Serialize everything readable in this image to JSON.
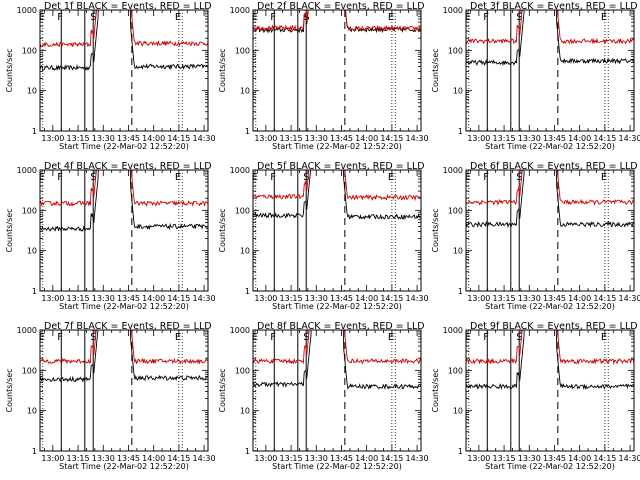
{
  "chart_data": [
    {
      "type": "line",
      "title": "Det 1f BLACK = Events, RED = LLD",
      "xlabel": "Start Time (22-Mar-02 12:52:20)",
      "ylabel": "Counts/sec",
      "yscale": "log",
      "ylim": [
        1,
        1000
      ],
      "x_ticks": [
        "13:00",
        "13:15",
        "13:30",
        "13:45",
        "14:00",
        "14:15",
        "14:30"
      ],
      "y_ticks": [
        "1",
        "10",
        "100",
        "1000"
      ],
      "markers": [
        {
          "label": "E",
          "time": "12:54",
          "style": "dotted"
        },
        {
          "label": "F",
          "time": "13:05",
          "style": "solid"
        },
        {
          "label": "S",
          "time": "13:24",
          "style": "solid"
        },
        {
          "label": "E",
          "time": "14:15",
          "style": "dotted"
        }
      ],
      "solid_lines": [
        "13:05",
        "13:19",
        "13:24"
      ],
      "dashed_lines": [
        "13:47"
      ],
      "dotted_lines": [
        "12:54",
        "14:15",
        "14:17"
      ],
      "series": [
        {
          "color": "#000000",
          "level_before": 37,
          "level_after": 40,
          "peak_time": "13:38"
        },
        {
          "color": "#cc0000",
          "level_before": 140,
          "level_after": 150,
          "peak_time": "13:38"
        }
      ]
    },
    {
      "type": "line",
      "title": "Det 2f BLACK = Events, RED = LLD",
      "xlabel": "Start Time (22-Mar-02 12:52:20)",
      "ylabel": "Counts/sec",
      "yscale": "log",
      "ylim": [
        1,
        1000
      ],
      "x_ticks": [
        "13:00",
        "13:15",
        "13:30",
        "13:45",
        "14:00",
        "14:15",
        "14:30"
      ],
      "y_ticks": [
        "1",
        "10",
        "100",
        "1000"
      ],
      "markers": [
        {
          "label": "E",
          "time": "12:54",
          "style": "dotted"
        },
        {
          "label": "F",
          "time": "13:05",
          "style": "solid"
        },
        {
          "label": "S",
          "time": "13:24",
          "style": "solid"
        },
        {
          "label": "E",
          "time": "14:15",
          "style": "dotted"
        }
      ],
      "solid_lines": [
        "13:05",
        "13:19",
        "13:24"
      ],
      "dashed_lines": [
        "13:47"
      ],
      "dotted_lines": [
        "12:54",
        "14:15",
        "14:17"
      ],
      "series": [
        {
          "color": "#000000",
          "level_before": 320,
          "level_after": 330,
          "peak_time": "13:38"
        },
        {
          "color": "#cc0000",
          "level_before": 360,
          "level_after": 350,
          "peak_time": "13:38"
        }
      ]
    },
    {
      "type": "line",
      "title": "Det 3f BLACK = Events, RED = LLD",
      "xlabel": "Start Time (22-Mar-02 12:52:20)",
      "ylabel": "Counts/sec",
      "yscale": "log",
      "ylim": [
        1,
        1000
      ],
      "x_ticks": [
        "13:00",
        "13:15",
        "13:30",
        "13:45",
        "14:00",
        "14:15",
        "14:30"
      ],
      "y_ticks": [
        "1",
        "10",
        "100",
        "1000"
      ],
      "markers": [
        {
          "label": "E",
          "time": "12:54",
          "style": "dotted"
        },
        {
          "label": "F",
          "time": "13:05",
          "style": "solid"
        },
        {
          "label": "S",
          "time": "13:24",
          "style": "solid"
        },
        {
          "label": "E",
          "time": "14:15",
          "style": "dotted"
        }
      ],
      "solid_lines": [
        "13:05",
        "13:19",
        "13:24"
      ],
      "dashed_lines": [
        "13:47"
      ],
      "dotted_lines": [
        "12:54",
        "14:15",
        "14:17"
      ],
      "series": [
        {
          "color": "#000000",
          "level_before": 50,
          "level_after": 55,
          "peak_time": "13:38"
        },
        {
          "color": "#cc0000",
          "level_before": 170,
          "level_after": 170,
          "peak_time": "13:38"
        }
      ]
    },
    {
      "type": "line",
      "title": "Det 4f BLACK = Events, RED = LLD",
      "xlabel": "Start Time (22-Mar-02 12:52:20)",
      "ylabel": "Counts/sec",
      "yscale": "log",
      "ylim": [
        1,
        1000
      ],
      "x_ticks": [
        "13:00",
        "13:15",
        "13:30",
        "13:45",
        "14:00",
        "14:15",
        "14:30"
      ],
      "y_ticks": [
        "1",
        "10",
        "100",
        "1000"
      ],
      "markers": [
        {
          "label": "E",
          "time": "12:54",
          "style": "dotted"
        },
        {
          "label": "F",
          "time": "13:05",
          "style": "solid"
        },
        {
          "label": "S",
          "time": "13:24",
          "style": "solid"
        },
        {
          "label": "E",
          "time": "14:15",
          "style": "dotted"
        }
      ],
      "solid_lines": [
        "13:05",
        "13:19",
        "13:24"
      ],
      "dashed_lines": [
        "13:47"
      ],
      "dotted_lines": [
        "12:54",
        "14:15",
        "14:17"
      ],
      "series": [
        {
          "color": "#000000",
          "level_before": 35,
          "level_after": 40,
          "peak_time": "13:38"
        },
        {
          "color": "#cc0000",
          "level_before": 150,
          "level_after": 150,
          "peak_time": "13:38"
        }
      ]
    },
    {
      "type": "line",
      "title": "Det 5f BLACK = Events, RED = LLD",
      "xlabel": "Start Time (22-Mar-02 12:52:20)",
      "ylabel": "Counts/sec",
      "yscale": "log",
      "ylim": [
        1,
        1000
      ],
      "x_ticks": [
        "13:00",
        "13:15",
        "13:30",
        "13:45",
        "14:00",
        "14:15",
        "14:30"
      ],
      "y_ticks": [
        "1",
        "10",
        "100",
        "1000"
      ],
      "markers": [
        {
          "label": "E",
          "time": "12:54",
          "style": "dotted"
        },
        {
          "label": "F",
          "time": "13:05",
          "style": "solid"
        },
        {
          "label": "S",
          "time": "13:24",
          "style": "solid"
        },
        {
          "label": "E",
          "time": "14:15",
          "style": "dotted"
        }
      ],
      "solid_lines": [
        "13:05",
        "13:19",
        "13:24"
      ],
      "dashed_lines": [
        "13:47"
      ],
      "dotted_lines": [
        "12:54",
        "14:15",
        "14:17"
      ],
      "series": [
        {
          "color": "#000000",
          "level_before": 75,
          "level_after": 70,
          "peak_time": "13:38"
        },
        {
          "color": "#cc0000",
          "level_before": 220,
          "level_after": 210,
          "peak_time": "13:38"
        }
      ]
    },
    {
      "type": "line",
      "title": "Det 6f BLACK = Events, RED = LLD",
      "xlabel": "Start Time (22-Mar-02 12:52:20)",
      "ylabel": "Counts/sec",
      "yscale": "log",
      "ylim": [
        1,
        1000
      ],
      "x_ticks": [
        "13:00",
        "13:15",
        "13:30",
        "13:45",
        "14:00",
        "14:15",
        "14:30"
      ],
      "y_ticks": [
        "1",
        "10",
        "100",
        "1000"
      ],
      "markers": [
        {
          "label": "E",
          "time": "12:54",
          "style": "dotted"
        },
        {
          "label": "F",
          "time": "13:05",
          "style": "solid"
        },
        {
          "label": "S",
          "time": "13:24",
          "style": "solid"
        },
        {
          "label": "E",
          "time": "14:15",
          "style": "dotted"
        }
      ],
      "solid_lines": [
        "13:05",
        "13:19",
        "13:24"
      ],
      "dashed_lines": [
        "13:47"
      ],
      "dotted_lines": [
        "12:54",
        "14:15",
        "14:17"
      ],
      "series": [
        {
          "color": "#000000",
          "level_before": 45,
          "level_after": 45,
          "peak_time": "13:38"
        },
        {
          "color": "#cc0000",
          "level_before": 160,
          "level_after": 160,
          "peak_time": "13:38"
        }
      ]
    },
    {
      "type": "line",
      "title": "Det 7f BLACK = Events, RED = LLD",
      "xlabel": "Start Time (22-Mar-02 12:52:20)",
      "ylabel": "Counts/sec",
      "yscale": "log",
      "ylim": [
        1,
        1000
      ],
      "x_ticks": [
        "13:00",
        "13:15",
        "13:30",
        "13:45",
        "14:00",
        "14:15",
        "14:30"
      ],
      "y_ticks": [
        "1",
        "10",
        "100",
        "1000"
      ],
      "markers": [
        {
          "label": "E",
          "time": "12:54",
          "style": "dotted"
        },
        {
          "label": "F",
          "time": "13:05",
          "style": "solid"
        },
        {
          "label": "S",
          "time": "13:24",
          "style": "solid"
        },
        {
          "label": "E",
          "time": "14:15",
          "style": "dotted"
        }
      ],
      "solid_lines": [
        "13:05",
        "13:19",
        "13:24"
      ],
      "dashed_lines": [
        "13:47"
      ],
      "dotted_lines": [
        "12:54",
        "14:15",
        "14:17"
      ],
      "series": [
        {
          "color": "#000000",
          "level_before": 60,
          "level_after": 65,
          "peak_time": "13:38"
        },
        {
          "color": "#cc0000",
          "level_before": 170,
          "level_after": 170,
          "peak_time": "13:38"
        }
      ]
    },
    {
      "type": "line",
      "title": "Det 8f BLACK = Events, RED = LLD",
      "xlabel": "Start Time (22-Mar-02 12:52:20)",
      "ylabel": "Counts/sec",
      "yscale": "log",
      "ylim": [
        1,
        1000
      ],
      "x_ticks": [
        "13:00",
        "13:15",
        "13:30",
        "13:45",
        "14:00",
        "14:15",
        "14:30"
      ],
      "y_ticks": [
        "1",
        "10",
        "100",
        "1000"
      ],
      "markers": [
        {
          "label": "E",
          "time": "12:54",
          "style": "dotted"
        },
        {
          "label": "F",
          "time": "13:05",
          "style": "solid"
        },
        {
          "label": "S",
          "time": "13:24",
          "style": "solid"
        },
        {
          "label": "E",
          "time": "14:15",
          "style": "dotted"
        }
      ],
      "solid_lines": [
        "13:05",
        "13:19",
        "13:24"
      ],
      "dashed_lines": [
        "13:47"
      ],
      "dotted_lines": [
        "12:54",
        "14:15",
        "14:17"
      ],
      "series": [
        {
          "color": "#000000",
          "level_before": 45,
          "level_after": 40,
          "peak_time": "13:38"
        },
        {
          "color": "#cc0000",
          "level_before": 170,
          "level_after": 170,
          "peak_time": "13:38"
        }
      ]
    },
    {
      "type": "line",
      "title": "Det 9f BLACK = Events, RED = LLD",
      "xlabel": "Start Time (22-Mar-02 12:52:20)",
      "ylabel": "Counts/sec",
      "yscale": "log",
      "ylim": [
        1,
        1000
      ],
      "x_ticks": [
        "13:00",
        "13:15",
        "13:30",
        "13:45",
        "14:00",
        "14:15",
        "14:30"
      ],
      "y_ticks": [
        "1",
        "10",
        "100",
        "1000"
      ],
      "markers": [
        {
          "label": "E",
          "time": "12:54",
          "style": "dotted"
        },
        {
          "label": "F",
          "time": "13:05",
          "style": "solid"
        },
        {
          "label": "S",
          "time": "13:24",
          "style": "solid"
        },
        {
          "label": "E",
          "time": "14:15",
          "style": "dotted"
        }
      ],
      "solid_lines": [
        "13:05",
        "13:19",
        "13:24"
      ],
      "dashed_lines": [
        "13:47"
      ],
      "dotted_lines": [
        "12:54",
        "14:15",
        "14:17"
      ],
      "series": [
        {
          "color": "#000000",
          "level_before": 40,
          "level_after": 40,
          "peak_time": "13:38"
        },
        {
          "color": "#cc0000",
          "level_before": 170,
          "level_after": 170,
          "peak_time": "13:38"
        }
      ]
    }
  ]
}
